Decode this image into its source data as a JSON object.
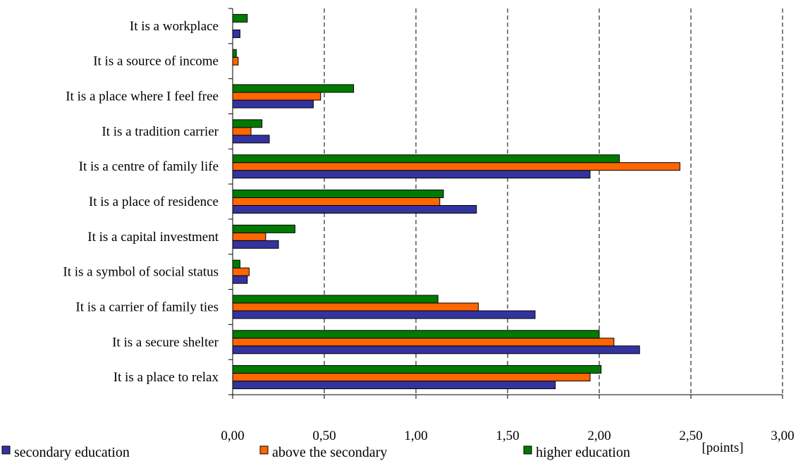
{
  "chart_data": {
    "type": "bar",
    "orientation": "horizontal",
    "categories": [
      "It is a place to relax",
      "It is a secure shelter",
      "It is a carrier of family ties",
      "It is a symbol of social status",
      "It is a capital investment",
      "It is a place of residence",
      "It is a centre of family life",
      "It is a tradition carrier",
      "It is a place where I feel free",
      "It is a source of income",
      "It is a workplace"
    ],
    "series": [
      {
        "name": "secondary education",
        "color": "#3333a0",
        "values": [
          1.76,
          2.22,
          1.65,
          0.08,
          0.25,
          1.33,
          1.95,
          0.2,
          0.44,
          0.0,
          0.04
        ]
      },
      {
        "name": "above the secondary",
        "color": "#ff6600",
        "values": [
          1.95,
          2.08,
          1.34,
          0.09,
          0.18,
          1.13,
          2.44,
          0.1,
          0.48,
          0.03,
          0.0
        ]
      },
      {
        "name": "higher education",
        "color": "#007a00",
        "values": [
          2.01,
          2.0,
          1.12,
          0.04,
          0.34,
          1.15,
          2.11,
          0.16,
          0.66,
          0.02,
          0.08
        ]
      }
    ],
    "xlim": [
      0,
      3.0
    ],
    "x_ticks": [
      "0,00",
      "0,50",
      "1,00",
      "1,50",
      "2,00",
      "2,50",
      "3,00"
    ],
    "x_tick_values": [
      0,
      0.5,
      1.0,
      1.5,
      2.0,
      2.5,
      3.0
    ],
    "xlabel": "[points]",
    "grid": "vertical dashed",
    "legend_position": "bottom"
  }
}
